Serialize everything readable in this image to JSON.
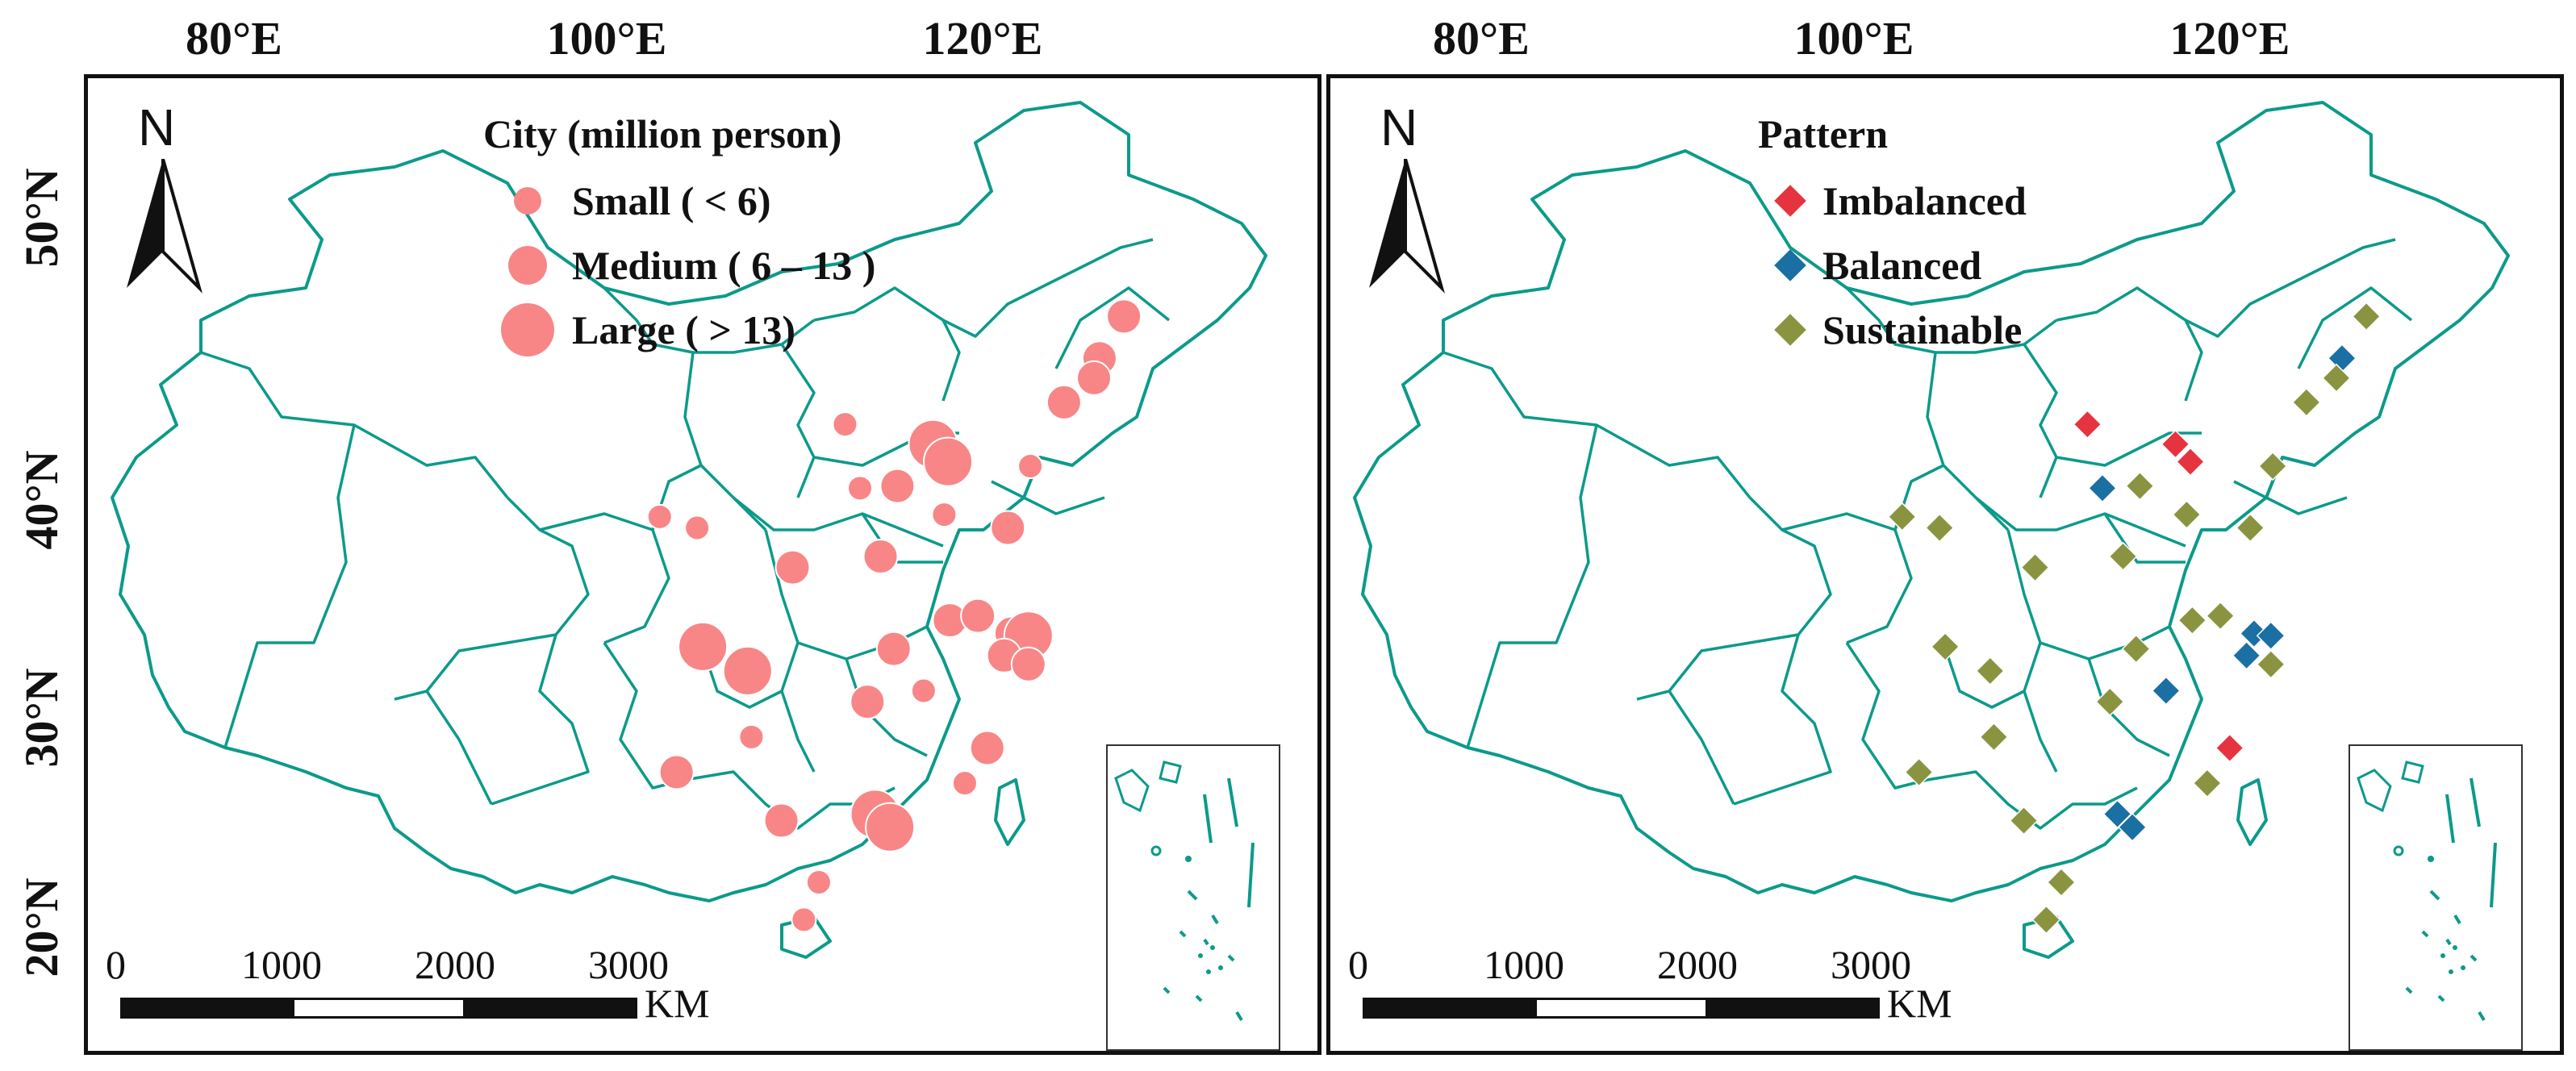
{
  "axes": {
    "longitude_labels": [
      "80°E",
      "100°E",
      "120°E"
    ],
    "latitude_labels": [
      "50°N",
      "40°N",
      "30°N",
      "20°N"
    ]
  },
  "colors": {
    "boundary": "#0c9a8a",
    "city_fill": "#f88686",
    "imbalanced": "#e5343f",
    "balanced": "#1a6fa3",
    "sustainable": "#8a9440"
  },
  "left_panel": {
    "north_label": "N",
    "legend": {
      "title": "City (million person)",
      "items": [
        {
          "label": "Small ( < 6)",
          "size": "small"
        },
        {
          "label": "Medium ( 6 – 13 )",
          "size": "medium"
        },
        {
          "label": "Large ( > 13)",
          "size": "large"
        }
      ]
    },
    "scale": {
      "ticks": [
        "0",
        "1000",
        "2000",
        "3000"
      ],
      "unit": "KM"
    }
  },
  "right_panel": {
    "north_label": "N",
    "legend": {
      "title": "Pattern",
      "items": [
        {
          "label": "Imbalanced",
          "color": "#e5343f"
        },
        {
          "label": "Balanced",
          "color": "#1a6fa3"
        },
        {
          "label": "Sustainable",
          "color": "#8a9440"
        }
      ]
    },
    "scale": {
      "ticks": [
        "0",
        "1000",
        "2000",
        "3000"
      ],
      "unit": "KM"
    }
  },
  "cities": [
    {
      "lon": 126.6,
      "lat": 45.7,
      "size": "medium",
      "pattern": "Sustainable"
    },
    {
      "lon": 125.3,
      "lat": 43.8,
      "size": "medium",
      "pattern": "Balanced"
    },
    {
      "lon": 125.0,
      "lat": 42.9,
      "size": "medium",
      "pattern": "Sustainable"
    },
    {
      "lon": 123.4,
      "lat": 41.8,
      "size": "medium",
      "pattern": "Sustainable"
    },
    {
      "lon": 121.6,
      "lat": 38.9,
      "size": "small",
      "pattern": "Sustainable"
    },
    {
      "lon": 111.7,
      "lat": 40.8,
      "size": "small",
      "pattern": "Imbalanced"
    },
    {
      "lon": 116.4,
      "lat": 39.9,
      "size": "large",
      "pattern": "Imbalanced"
    },
    {
      "lon": 117.2,
      "lat": 39.1,
      "size": "large",
      "pattern": "Imbalanced"
    },
    {
      "lon": 112.5,
      "lat": 37.9,
      "size": "small",
      "pattern": "Balanced"
    },
    {
      "lon": 114.5,
      "lat": 38.0,
      "size": "medium",
      "pattern": "Sustainable"
    },
    {
      "lon": 117.0,
      "lat": 36.7,
      "size": "small",
      "pattern": "Sustainable"
    },
    {
      "lon": 120.4,
      "lat": 36.1,
      "size": "medium",
      "pattern": "Sustainable"
    },
    {
      "lon": 101.8,
      "lat": 36.6,
      "size": "small",
      "pattern": "Sustainable"
    },
    {
      "lon": 103.8,
      "lat": 36.1,
      "size": "small",
      "pattern": "Sustainable"
    },
    {
      "lon": 108.9,
      "lat": 34.3,
      "size": "medium",
      "pattern": "Sustainable"
    },
    {
      "lon": 113.6,
      "lat": 34.8,
      "size": "medium",
      "pattern": "Sustainable"
    },
    {
      "lon": 117.3,
      "lat": 31.9,
      "size": "medium",
      "pattern": "Sustainable"
    },
    {
      "lon": 118.8,
      "lat": 32.1,
      "size": "medium",
      "pattern": "Sustainable"
    },
    {
      "lon": 120.6,
      "lat": 31.3,
      "size": "medium",
      "pattern": "Balanced"
    },
    {
      "lon": 121.5,
      "lat": 31.2,
      "size": "large",
      "pattern": "Balanced"
    },
    {
      "lon": 120.2,
      "lat": 30.3,
      "size": "medium",
      "pattern": "Balanced"
    },
    {
      "lon": 121.5,
      "lat": 29.9,
      "size": "medium",
      "pattern": "Sustainable"
    },
    {
      "lon": 114.3,
      "lat": 30.6,
      "size": "medium",
      "pattern": "Sustainable"
    },
    {
      "lon": 104.1,
      "lat": 30.7,
      "size": "large",
      "pattern": "Sustainable"
    },
    {
      "lon": 106.5,
      "lat": 29.6,
      "size": "large",
      "pattern": "Sustainable"
    },
    {
      "lon": 112.9,
      "lat": 28.2,
      "size": "medium",
      "pattern": "Sustainable"
    },
    {
      "lon": 115.9,
      "lat": 28.7,
      "size": "small",
      "pattern": "Balanced"
    },
    {
      "lon": 106.7,
      "lat": 26.6,
      "size": "small",
      "pattern": "Sustainable"
    },
    {
      "lon": 119.3,
      "lat": 26.1,
      "size": "medium",
      "pattern": "Imbalanced"
    },
    {
      "lon": 102.7,
      "lat": 25.0,
      "size": "medium",
      "pattern": "Sustainable"
    },
    {
      "lon": 118.1,
      "lat": 24.5,
      "size": "small",
      "pattern": "Sustainable"
    },
    {
      "lon": 108.3,
      "lat": 22.8,
      "size": "medium",
      "pattern": "Sustainable"
    },
    {
      "lon": 113.3,
      "lat": 23.1,
      "size": "large",
      "pattern": "Balanced"
    },
    {
      "lon": 114.1,
      "lat": 22.5,
      "size": "large",
      "pattern": "Balanced"
    },
    {
      "lon": 110.3,
      "lat": 20.0,
      "size": "small",
      "pattern": "Sustainable"
    },
    {
      "lon": 109.5,
      "lat": 18.3,
      "size": "small",
      "pattern": "Sustainable"
    }
  ]
}
